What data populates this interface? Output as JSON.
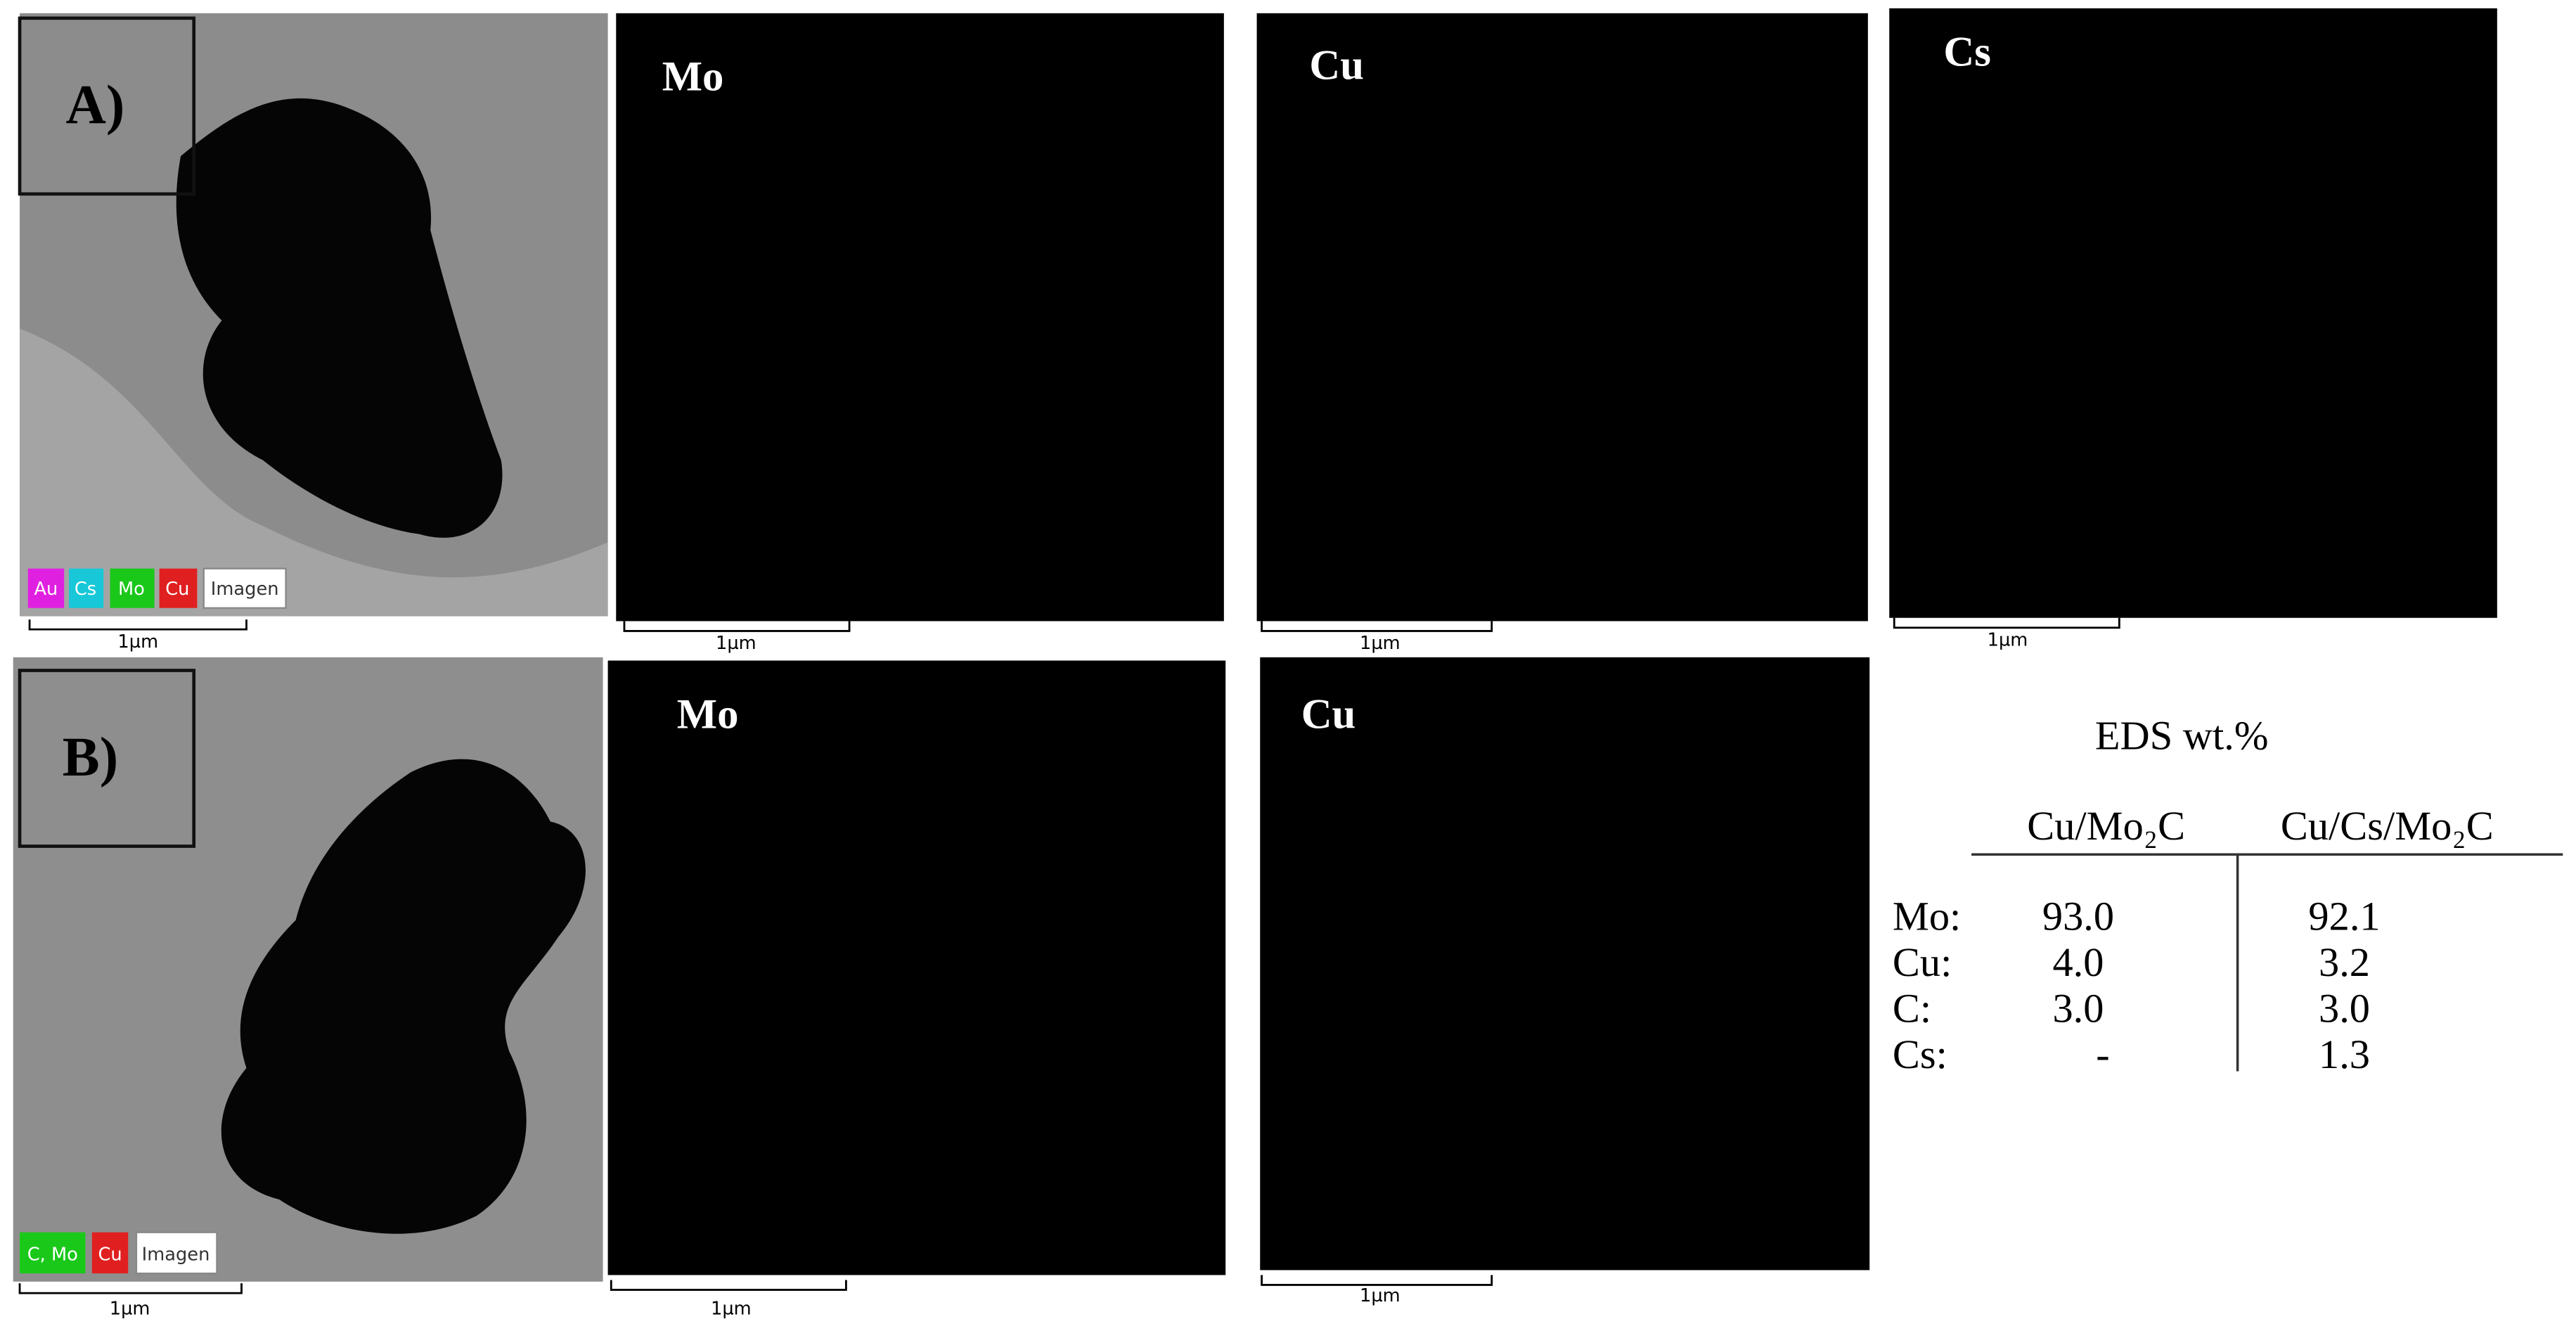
{
  "row_a": {
    "label": "A)",
    "legend": [
      "Au",
      "Cs",
      "Mo",
      "Cu",
      "Imagen"
    ],
    "scale": "1µm",
    "maps": [
      {
        "element": "Mo",
        "scale": "1µm"
      },
      {
        "element": "Cu",
        "scale": "1µm"
      },
      {
        "element": "Cs",
        "scale": "1µm"
      }
    ]
  },
  "row_b": {
    "label": "B)",
    "legend": [
      "C, Mo",
      "Cu",
      "Imagen"
    ],
    "scale": "1µm",
    "maps": [
      {
        "element": "Mo",
        "scale": "1µm"
      },
      {
        "element": "Cu",
        "scale": "1µm"
      }
    ]
  },
  "table": {
    "title": "EDS wt.%",
    "columns": [
      "Cu/Mo₂C",
      "Cu/Cs/Mo₂C"
    ],
    "rows": [
      [
        "Mo:",
        "93.0",
        "92.1"
      ],
      [
        "Cu:",
        "4.0",
        "3.2"
      ],
      [
        "C:",
        "3.0",
        "3.0"
      ],
      [
        "Cs:",
        "-",
        "1.3"
      ]
    ]
  }
}
